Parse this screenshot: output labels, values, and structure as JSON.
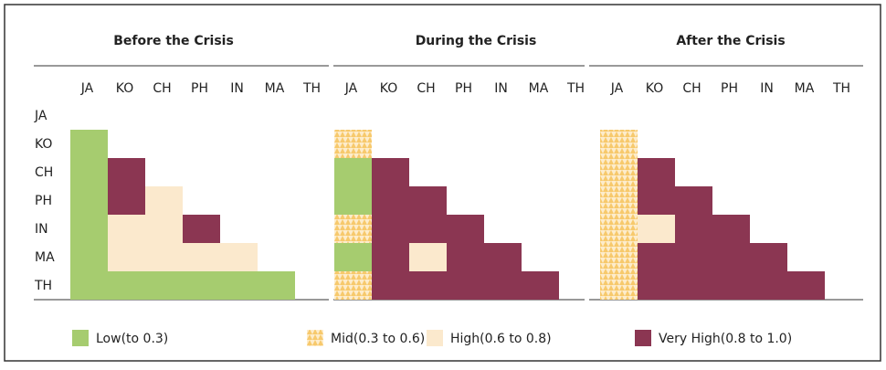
{
  "row_labels": [
    "JA",
    "KO",
    "CH",
    "PH",
    "IN",
    "MA",
    "TH"
  ],
  "col_labels": [
    "JA",
    "KO",
    "CH",
    "PH",
    "IN",
    "MA",
    "TH"
  ],
  "legend": [
    {
      "label": "Low(to 0.3)",
      "color": "#a6cc6f"
    },
    {
      "label": "Mid(0.3 to 0.6)",
      "color": "#f7c96c",
      "hatch": true
    },
    {
      "label": "High(0.6 to 0.8)",
      "color": "#fbe9cd"
    },
    {
      "label": "Very High(0.8 to 1.0)",
      "color": "#8b3652"
    }
  ],
  "panels": [
    {
      "title": "Before the Crisis",
      "cells": [
        [],
        [
          0
        ],
        [
          0,
          3
        ],
        [
          0,
          3,
          2
        ],
        [
          0,
          2,
          2,
          3
        ],
        [
          0,
          2,
          2,
          2,
          2
        ],
        [
          0,
          0,
          0,
          0,
          0,
          0
        ]
      ]
    },
    {
      "title": "During the Crisis",
      "cells": [
        [],
        [
          1
        ],
        [
          0,
          3
        ],
        [
          0,
          3,
          3
        ],
        [
          1,
          3,
          3,
          3
        ],
        [
          0,
          3,
          2,
          3,
          3
        ],
        [
          1,
          3,
          3,
          3,
          3,
          3
        ]
      ]
    },
    {
      "title": "After the Crisis",
      "cells": [
        [],
        [
          1
        ],
        [
          1,
          3
        ],
        [
          1,
          3,
          3
        ],
        [
          1,
          2,
          3,
          3
        ],
        [
          1,
          3,
          3,
          3,
          3
        ],
        [
          1,
          3,
          3,
          3,
          3,
          3
        ]
      ]
    }
  ]
}
